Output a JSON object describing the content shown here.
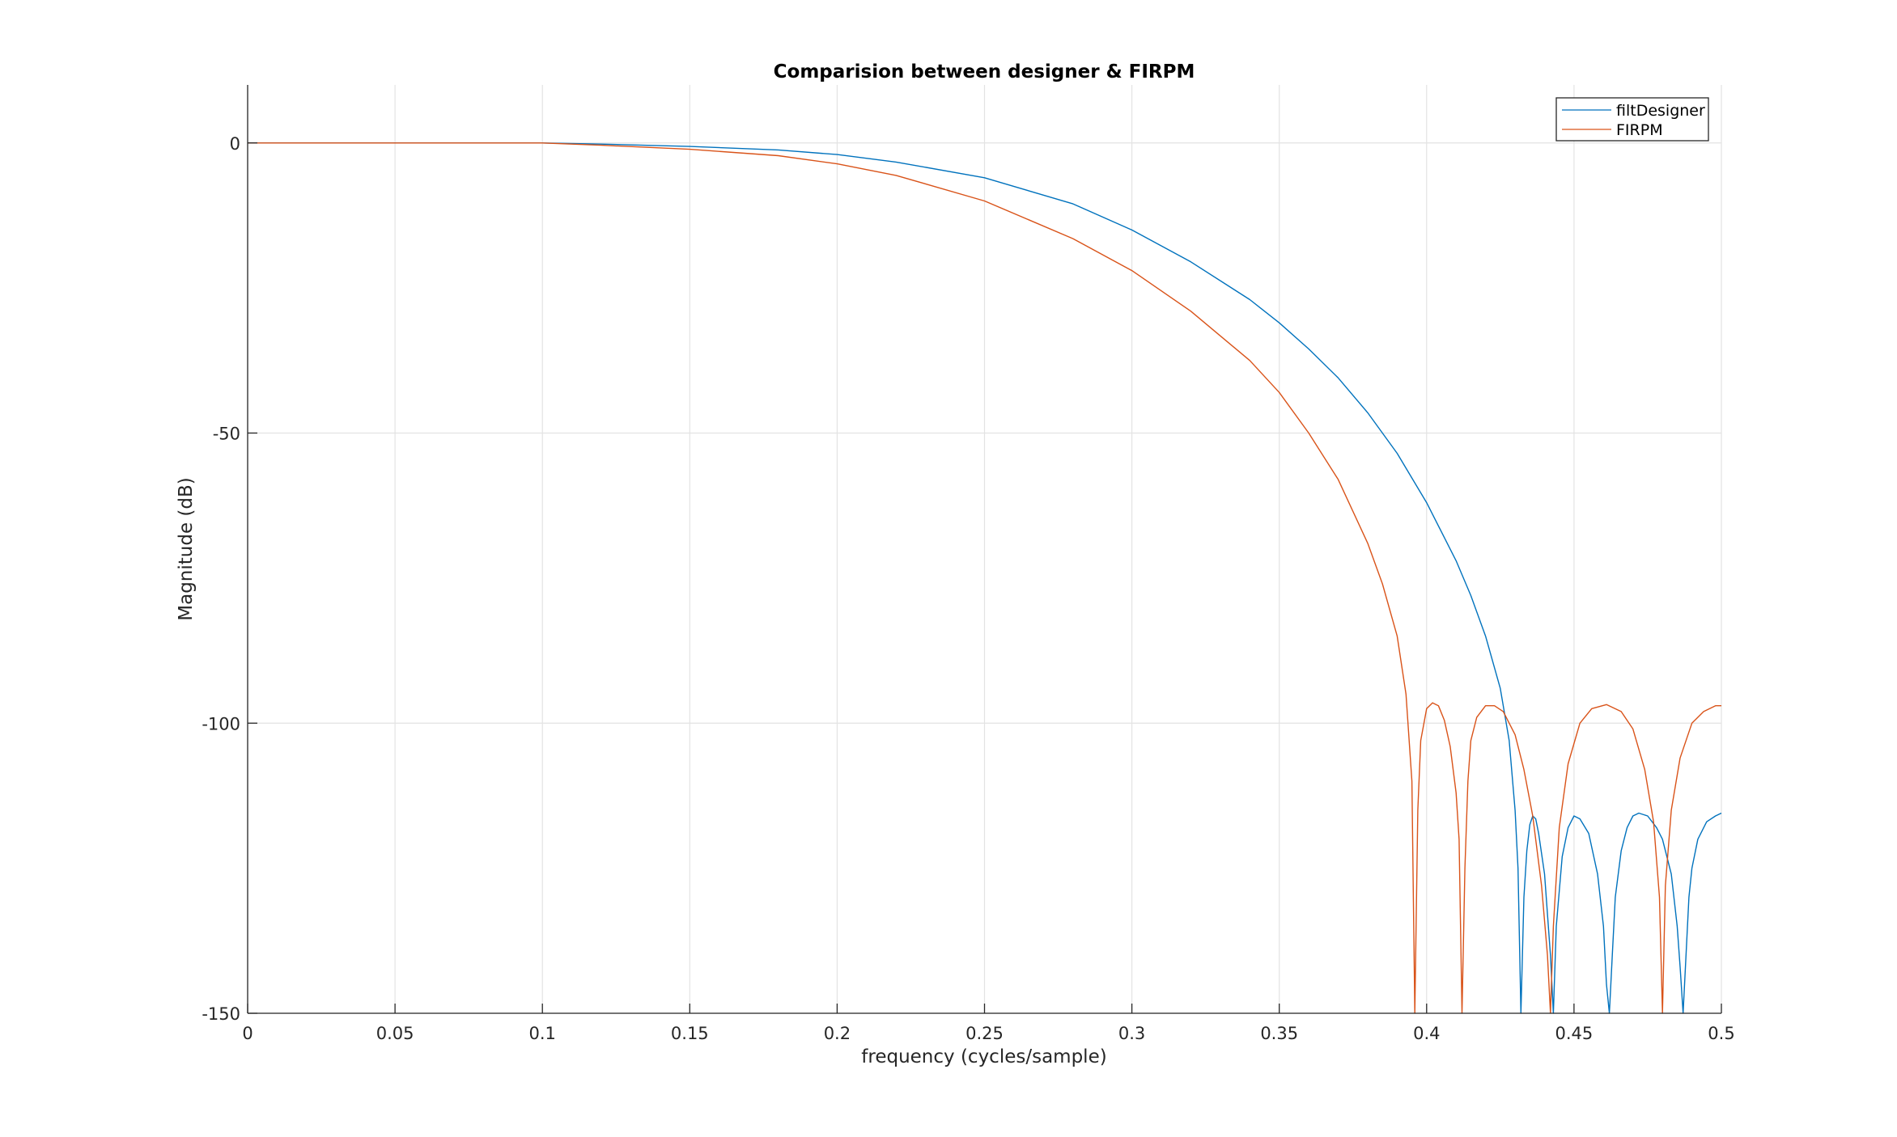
{
  "chart_data": {
    "type": "line",
    "title": "Comparision between designer & FIRPM",
    "xlabel": "frequency (cycles/sample)",
    "ylabel": "Magnitude (dB)",
    "xlim": [
      0,
      0.5
    ],
    "ylim": [
      -150,
      10
    ],
    "xticks": [
      0,
      0.05,
      0.1,
      0.15,
      0.2,
      0.25,
      0.3,
      0.35,
      0.4,
      0.45,
      0.5
    ],
    "xtick_labels": [
      "0",
      "0.05",
      "0.1",
      "0.15",
      "0.2",
      "0.25",
      "0.3",
      "0.35",
      "0.4",
      "0.45",
      "0.5"
    ],
    "yticks": [
      0,
      -50,
      -100,
      -150
    ],
    "ytick_labels": [
      "0",
      "-50",
      "-100",
      "-150"
    ],
    "grid": true,
    "legend_position": "top-right",
    "series": [
      {
        "name": "filtDesigner",
        "color": "#0072BD",
        "x": [
          0,
          0.1,
          0.12,
          0.15,
          0.18,
          0.2,
          0.22,
          0.25,
          0.28,
          0.3,
          0.32,
          0.34,
          0.35,
          0.36,
          0.37,
          0.38,
          0.39,
          0.4,
          0.41,
          0.415,
          0.42,
          0.425,
          0.428,
          0.43,
          0.431,
          0.432,
          0.433,
          0.434,
          0.435,
          0.436,
          0.437,
          0.438,
          0.44,
          0.442,
          0.443,
          0.444,
          0.446,
          0.448,
          0.45,
          0.452,
          0.455,
          0.458,
          0.46,
          0.461,
          0.462,
          0.463,
          0.464,
          0.466,
          0.468,
          0.47,
          0.472,
          0.475,
          0.478,
          0.48,
          0.483,
          0.485,
          0.486,
          0.487,
          0.488,
          0.489,
          0.49,
          0.492,
          0.495,
          0.498,
          0.5
        ],
        "y": [
          0,
          0,
          -0.2,
          -0.6,
          -1.2,
          -2,
          -3.3,
          -6,
          -10.5,
          -15,
          -20.5,
          -27,
          -31,
          -35.5,
          -40.5,
          -46.5,
          -53.5,
          -62,
          -72,
          -78,
          -85,
          -94,
          -103,
          -115,
          -125,
          -150,
          -130,
          -122,
          -117.5,
          -116,
          -116.5,
          -119,
          -126,
          -140,
          -150,
          -135,
          -123,
          -118,
          -116,
          -116.5,
          -119,
          -126,
          -135,
          -145,
          -150,
          -140,
          -130,
          -122,
          -118,
          -116,
          -115.5,
          -116,
          -118,
          -120,
          -126,
          -135,
          -142,
          -150,
          -140,
          -130,
          -125,
          -120,
          -117,
          -116,
          -115.5
        ]
      },
      {
        "name": "FIRPM",
        "color": "#D95319",
        "x": [
          0,
          0.1,
          0.12,
          0.15,
          0.18,
          0.2,
          0.22,
          0.25,
          0.28,
          0.3,
          0.32,
          0.34,
          0.35,
          0.36,
          0.37,
          0.38,
          0.385,
          0.39,
          0.393,
          0.395,
          0.396,
          0.397,
          0.398,
          0.4,
          0.402,
          0.404,
          0.406,
          0.408,
          0.41,
          0.411,
          0.412,
          0.413,
          0.414,
          0.415,
          0.417,
          0.42,
          0.423,
          0.426,
          0.43,
          0.433,
          0.436,
          0.439,
          0.441,
          0.442,
          0.443,
          0.445,
          0.448,
          0.452,
          0.456,
          0.461,
          0.466,
          0.47,
          0.474,
          0.477,
          0.479,
          0.48,
          0.481,
          0.483,
          0.486,
          0.49,
          0.494,
          0.498,
          0.5
        ],
        "y": [
          0,
          0,
          -0.4,
          -1.1,
          -2.2,
          -3.6,
          -5.6,
          -10,
          -16.5,
          -22,
          -29,
          -37.5,
          -43,
          -50,
          -58,
          -69,
          -76,
          -85,
          -95,
          -110,
          -150,
          -115,
          -103,
          -97.5,
          -96.5,
          -97,
          -99.5,
          -104,
          -112,
          -120,
          -150,
          -125,
          -110,
          -103,
          -99,
          -97,
          -97,
          -98,
          -102,
          -108,
          -116,
          -128,
          -140,
          -150,
          -135,
          -118,
          -107,
          -100,
          -97.5,
          -96.8,
          -98,
          -101,
          -108,
          -117,
          -130,
          -150,
          -128,
          -115,
          -106,
          -100,
          -98,
          -97,
          -97
        ]
      }
    ]
  }
}
